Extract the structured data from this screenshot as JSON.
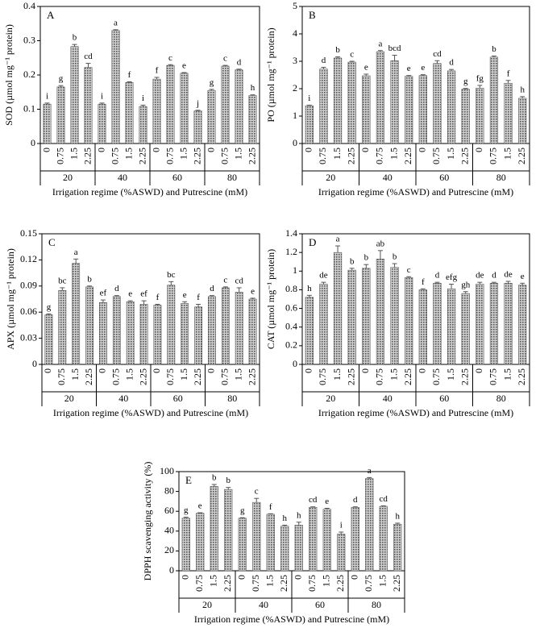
{
  "chart_data": [
    {
      "type": "bar",
      "panel_label": "A",
      "y_label": "SOD (µmol mg⁻¹ protein)",
      "x_label": "Irrigation regime (%ASWD) and Putrescine (mM)",
      "categories": [
        "0",
        "0.75",
        "1.5",
        "2.25",
        "0",
        "0.75",
        "1.5",
        "2.25",
        "0",
        "0.75",
        "1.5",
        "2.25",
        "0",
        "0.75",
        "1.5",
        "2.25"
      ],
      "groups": [
        "20",
        "40",
        "60",
        "80"
      ],
      "values": [
        0.115,
        0.165,
        0.283,
        0.222,
        0.115,
        0.33,
        0.178,
        0.108,
        0.188,
        0.228,
        0.205,
        0.095,
        0.155,
        0.226,
        0.215,
        0.14
      ],
      "errors": [
        0.003,
        0.004,
        0.006,
        0.012,
        0.003,
        0.002,
        0.002,
        0.004,
        0.005,
        0.002,
        0.002,
        0.002,
        0.003,
        0.002,
        0.002,
        0.002
      ],
      "annotations": [
        "i",
        "g",
        "b",
        "cd",
        "i",
        "a",
        "f",
        "i",
        "f",
        "c",
        "e",
        "j",
        "g",
        "c",
        "d",
        "h"
      ],
      "color": "#555555",
      "ylim": [
        0,
        0.4
      ],
      "yticks": [
        0,
        0.1,
        0.2,
        0.3,
        0.4
      ]
    },
    {
      "type": "bar",
      "panel_label": "B",
      "y_label": "PO (µmol mg⁻¹ protein)",
      "x_label": "Irrigation regime (%ASWD) and Putrescine (mM)",
      "categories": [
        "0",
        "0.75",
        "1.5",
        "2.25",
        "0",
        "0.75",
        "1.5",
        "2.25",
        "0",
        "0.75",
        "1.5",
        "2.25",
        "0",
        "0.75",
        "1.5",
        "2.25"
      ],
      "groups": [
        "20",
        "40",
        "60",
        "80"
      ],
      "values": [
        1.38,
        2.72,
        3.12,
        2.97,
        2.47,
        3.35,
        3.02,
        2.45,
        2.48,
        2.92,
        2.65,
        1.98,
        2.02,
        3.15,
        2.2,
        1.65
      ],
      "errors": [
        0.02,
        0.06,
        0.04,
        0.03,
        0.06,
        0.04,
        0.2,
        0.03,
        0.03,
        0.1,
        0.05,
        0.03,
        0.1,
        0.04,
        0.1,
        0.06
      ],
      "annotations": [
        "i",
        "d",
        "b",
        "c",
        "e",
        "a",
        "bcd",
        "e",
        "e",
        "cd",
        "d",
        "g",
        "fg",
        "b",
        "f",
        "h"
      ],
      "color": "#555555",
      "ylim": [
        0,
        5
      ],
      "yticks": [
        0,
        1,
        2,
        3,
        4,
        5
      ]
    },
    {
      "type": "bar",
      "panel_label": "C",
      "y_label": "APX (µmol mg⁻¹ protein)",
      "x_label": "Irrigation regime (%ASWD) and Putrescine (mM)",
      "categories": [
        "0",
        "0.75",
        "1.5",
        "2.25",
        "0",
        "0.75",
        "1.5",
        "2.25",
        "0",
        "0.75",
        "1.5",
        "2.25",
        "0",
        "0.75",
        "1.5",
        "2.25"
      ],
      "groups": [
        "20",
        "40",
        "60",
        "80"
      ],
      "values": [
        0.057,
        0.085,
        0.116,
        0.089,
        0.071,
        0.078,
        0.072,
        0.069,
        0.068,
        0.091,
        0.07,
        0.066,
        0.078,
        0.088,
        0.083,
        0.075
      ],
      "errors": [
        0.001,
        0.003,
        0.005,
        0.001,
        0.003,
        0.001,
        0.001,
        0.004,
        0.001,
        0.004,
        0.002,
        0.003,
        0.001,
        0.001,
        0.005,
        0.001
      ],
      "annotations": [
        "g",
        "bc",
        "a",
        "b",
        "ef",
        "d",
        "e",
        "ef",
        "f",
        "bc",
        "e",
        "f",
        "d",
        "c",
        "cd",
        "e"
      ],
      "color": "#555555",
      "ylim": [
        0,
        0.15
      ],
      "yticks": [
        0,
        0.03,
        0.06,
        0.09,
        0.12,
        0.15
      ]
    },
    {
      "type": "bar",
      "panel_label": "D",
      "y_label": "CAT (µmol mg⁻¹ protein)",
      "x_label": "Irrigation regime (%ASWD) and Putrescine (mM)",
      "categories": [
        "0",
        "0.75",
        "1.5",
        "2.25",
        "0",
        "0.75",
        "1.5",
        "2.25",
        "0",
        "0.75",
        "1.5",
        "2.25",
        "0",
        "0.75",
        "1.5",
        "2.25"
      ],
      "groups": [
        "20",
        "40",
        "60",
        "80"
      ],
      "values": [
        0.72,
        0.86,
        1.2,
        1.01,
        1.03,
        1.13,
        1.04,
        0.93,
        0.8,
        0.87,
        0.81,
        0.76,
        0.86,
        0.87,
        0.87,
        0.85
      ],
      "errors": [
        0.02,
        0.02,
        0.07,
        0.02,
        0.04,
        0.09,
        0.04,
        0.01,
        0.01,
        0.01,
        0.05,
        0.02,
        0.02,
        0.01,
        0.02,
        0.02
      ],
      "annotations": [
        "h",
        "de",
        "a",
        "b",
        "b",
        "ab",
        "b",
        "c",
        "f",
        "d",
        "efg",
        "gh",
        "de",
        "d",
        "de",
        "e"
      ],
      "color": "#555555",
      "ylim": [
        0,
        1.4
      ],
      "yticks": [
        0,
        0.2,
        0.4,
        0.6,
        0.8,
        1,
        1.2,
        1.4
      ]
    },
    {
      "type": "bar",
      "panel_label": "E",
      "y_label": "DPPH scavenging activity (%)",
      "x_label": "Irrigation regime (%ASWD) and Putrescine (mM)",
      "categories": [
        "0",
        "0.75",
        "1.5",
        "2.25",
        "0",
        "0.75",
        "1.5",
        "2.25",
        "0",
        "0.75",
        "1.5",
        "2.25",
        "0",
        "0.75",
        "1.5",
        "2.25"
      ],
      "groups": [
        "20",
        "40",
        "60",
        "80"
      ],
      "values": [
        53,
        58,
        85,
        82,
        53,
        69,
        57,
        45,
        46,
        64,
        62,
        37,
        64,
        93,
        65,
        47
      ],
      "errors": [
        1,
        0.5,
        2,
        2,
        0.5,
        4,
        0.5,
        1,
        3,
        0.5,
        1,
        2,
        0.5,
        1,
        0.5,
        1
      ],
      "annotations": [
        "g",
        "e",
        "b",
        "b",
        "g",
        "c",
        "f",
        "h",
        "h",
        "cd",
        "e",
        "i",
        "d",
        "a",
        "cd",
        "h"
      ],
      "color": "#555555",
      "ylim": [
        0,
        100
      ],
      "yticks": [
        0,
        20,
        40,
        60,
        80,
        100
      ]
    }
  ]
}
